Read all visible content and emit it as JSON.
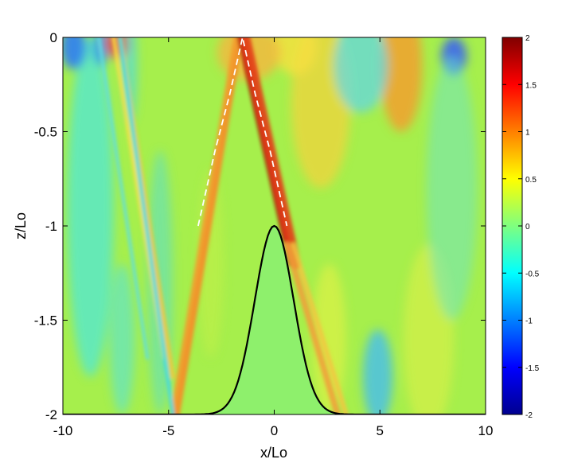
{
  "chart_data": {
    "type": "heatmap",
    "title": "",
    "xlabel": "x/Lo",
    "ylabel": "z/Lo",
    "xlim": [
      -10,
      10
    ],
    "ylim": [
      -2,
      0
    ],
    "x_ticks": [
      -10,
      -5,
      0,
      5,
      10
    ],
    "x_tick_labels": [
      "-10",
      "-5",
      "0",
      "5",
      "10"
    ],
    "y_ticks": [
      0,
      -0.5,
      -1,
      -1.5,
      -2
    ],
    "y_tick_labels": [
      "0",
      "-0.5",
      "-1",
      "-1.5",
      "-2"
    ],
    "colorbar": {
      "colormap": "jet",
      "range": [
        -2,
        2
      ],
      "ticks": [
        2,
        1.5,
        1,
        0.5,
        0,
        -0.5,
        -1,
        -1.5,
        -2
      ],
      "tick_labels": [
        "2",
        "1.5",
        "1",
        "0.5",
        "0",
        "-0.5",
        "-1",
        "-1.5",
        "-2"
      ]
    },
    "topography": {
      "shape": "gaussian",
      "center_x": 0,
      "peak_z": -1,
      "base_z": -2,
      "half_width_approx": 1.3,
      "fill_color": "#8ef06c",
      "line_color": "#000000"
    },
    "dashed_ray": {
      "color": "#ffffff",
      "points": [
        [
          -3.6,
          -1.0
        ],
        [
          -2.8,
          -0.6
        ],
        [
          -2.1,
          -0.3
        ],
        [
          -1.5,
          0
        ],
        [
          -0.9,
          -0.3
        ],
        [
          -0.2,
          -0.6
        ],
        [
          0.6,
          -1.0
        ]
      ]
    },
    "grid": false
  }
}
